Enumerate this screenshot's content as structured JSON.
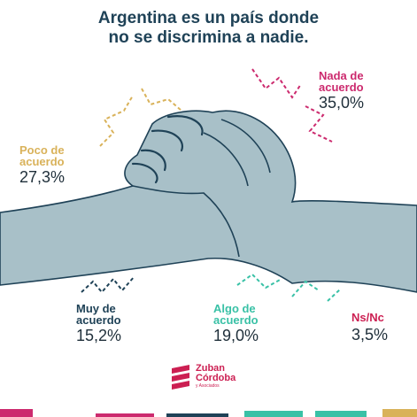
{
  "title": {
    "line1": "Argentina es un país donde",
    "line2": "no se discrimina a nadie."
  },
  "chart_data": {
    "type": "pie",
    "title": "Argentina es un país donde no se discrimina a nadie.",
    "categories": [
      "Nada de acuerdo",
      "Poco de acuerdo",
      "Muy de acuerdo",
      "Algo de acuerdo",
      "Ns/Nc"
    ],
    "values": [
      35.0,
      27.3,
      15.2,
      19.0,
      3.5
    ],
    "unit": "%",
    "colors": [
      "#cc2a6e",
      "#d9b25a",
      "#1f4257",
      "#39c1a6",
      "#cc1f52"
    ]
  },
  "labels": [
    {
      "name_line1": "Nada de",
      "name_line2": "acuerdo",
      "value": "35,0%",
      "color": "#cc2a6e"
    },
    {
      "name_line1": "Poco de",
      "name_line2": "acuerdo",
      "value": "27,3%",
      "color": "#d9b25a"
    },
    {
      "name_line1": "Muy de",
      "name_line2": "acuerdo",
      "value": "15,2%",
      "color": "#1f4257"
    },
    {
      "name_line1": "Algo de",
      "name_line2": "acuerdo",
      "value": "19,0%",
      "color": "#39c1a6"
    },
    {
      "name_line1": "Ns/Nc",
      "name_line2": "",
      "value": "3,5%",
      "color": "#cc1f52"
    }
  ],
  "logo": {
    "line1": "Zuban",
    "line2": "Córdoba",
    "line3": "y Asociados"
  },
  "bottom_bar_colors": [
    "#cc2a6e",
    "#1f4257",
    "#39c1a6",
    "#d9b25a"
  ]
}
